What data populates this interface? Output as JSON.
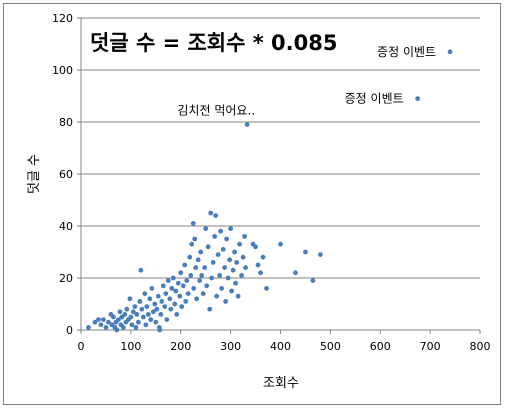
{
  "chart_data": {
    "type": "scatter",
    "title": "",
    "equation": "덧글 수 = 조회수 * 0.085",
    "xlabel": "조회수",
    "ylabel": "덧글 수",
    "xlim": [
      0,
      800
    ],
    "ylim": [
      0,
      120
    ],
    "x_ticks": [
      "0",
      "100",
      "200",
      "300",
      "400",
      "500",
      "600",
      "700",
      "800"
    ],
    "y_ticks": [
      "0",
      "20",
      "40",
      "60",
      "80",
      "100",
      "120"
    ],
    "grid": "horizontal",
    "legend": "none",
    "marker_color": "#4a7ebb",
    "annotations": [
      {
        "text": "증정 이벤트",
        "x": 740,
        "y": 107
      },
      {
        "text": "증정 이벤트",
        "x": 675,
        "y": 89
      },
      {
        "text": "김치전 먹어요..",
        "x": 333,
        "y": 79
      }
    ],
    "points": [
      [
        15,
        1
      ],
      [
        28,
        3
      ],
      [
        35,
        4
      ],
      [
        40,
        2
      ],
      [
        45,
        4
      ],
      [
        50,
        1
      ],
      [
        55,
        3
      ],
      [
        60,
        6
      ],
      [
        62,
        2
      ],
      [
        65,
        5
      ],
      [
        68,
        1
      ],
      [
        70,
        3
      ],
      [
        72,
        0
      ],
      [
        75,
        4
      ],
      [
        78,
        7
      ],
      [
        80,
        2
      ],
      [
        82,
        5
      ],
      [
        85,
        1
      ],
      [
        88,
        6
      ],
      [
        90,
        3
      ],
      [
        92,
        8
      ],
      [
        95,
        4
      ],
      [
        98,
        12
      ],
      [
        100,
        5
      ],
      [
        102,
        2
      ],
      [
        105,
        7
      ],
      [
        108,
        9
      ],
      [
        110,
        1
      ],
      [
        112,
        6
      ],
      [
        115,
        3
      ],
      [
        118,
        11
      ],
      [
        120,
        23
      ],
      [
        122,
        8
      ],
      [
        125,
        5
      ],
      [
        128,
        14
      ],
      [
        130,
        2
      ],
      [
        132,
        9
      ],
      [
        135,
        6
      ],
      [
        138,
        12
      ],
      [
        140,
        4
      ],
      [
        142,
        16
      ],
      [
        145,
        7
      ],
      [
        148,
        10
      ],
      [
        150,
        3
      ],
      [
        152,
        8
      ],
      [
        155,
        13
      ],
      [
        157,
        1
      ],
      [
        158,
        0
      ],
      [
        160,
        6
      ],
      [
        162,
        11
      ],
      [
        165,
        17
      ],
      [
        168,
        9
      ],
      [
        170,
        14
      ],
      [
        172,
        4
      ],
      [
        175,
        19
      ],
      [
        178,
        12
      ],
      [
        180,
        8
      ],
      [
        182,
        16
      ],
      [
        185,
        20
      ],
      [
        188,
        10
      ],
      [
        190,
        15
      ],
      [
        192,
        6
      ],
      [
        195,
        18
      ],
      [
        198,
        13
      ],
      [
        200,
        22
      ],
      [
        202,
        9
      ],
      [
        205,
        17
      ],
      [
        208,
        25
      ],
      [
        210,
        11
      ],
      [
        212,
        19
      ],
      [
        215,
        14
      ],
      [
        218,
        28
      ],
      [
        220,
        21
      ],
      [
        222,
        33
      ],
      [
        225,
        41
      ],
      [
        226,
        16
      ],
      [
        228,
        35
      ],
      [
        230,
        24
      ],
      [
        232,
        12
      ],
      [
        235,
        27
      ],
      [
        238,
        19
      ],
      [
        240,
        30
      ],
      [
        242,
        21
      ],
      [
        245,
        14
      ],
      [
        248,
        24
      ],
      [
        250,
        39
      ],
      [
        252,
        17
      ],
      [
        255,
        32
      ],
      [
        258,
        8
      ],
      [
        260,
        45
      ],
      [
        262,
        20
      ],
      [
        265,
        26
      ],
      [
        268,
        36
      ],
      [
        270,
        44
      ],
      [
        272,
        13
      ],
      [
        275,
        29
      ],
      [
        278,
        21
      ],
      [
        280,
        38
      ],
      [
        282,
        16
      ],
      [
        285,
        31
      ],
      [
        288,
        24
      ],
      [
        290,
        11
      ],
      [
        292,
        35
      ],
      [
        295,
        20
      ],
      [
        298,
        27
      ],
      [
        300,
        39
      ],
      [
        302,
        15
      ],
      [
        305,
        23
      ],
      [
        308,
        30
      ],
      [
        310,
        18
      ],
      [
        312,
        26
      ],
      [
        315,
        13
      ],
      [
        318,
        33
      ],
      [
        322,
        21
      ],
      [
        325,
        28
      ],
      [
        328,
        36
      ],
      [
        330,
        24
      ],
      [
        345,
        33
      ],
      [
        350,
        32
      ],
      [
        355,
        25
      ],
      [
        360,
        22
      ],
      [
        365,
        28
      ],
      [
        372,
        16
      ],
      [
        400,
        33
      ],
      [
        430,
        22
      ],
      [
        450,
        30
      ],
      [
        465,
        19
      ],
      [
        480,
        29
      ],
      [
        333,
        79
      ],
      [
        675,
        89
      ],
      [
        740,
        107
      ]
    ]
  }
}
